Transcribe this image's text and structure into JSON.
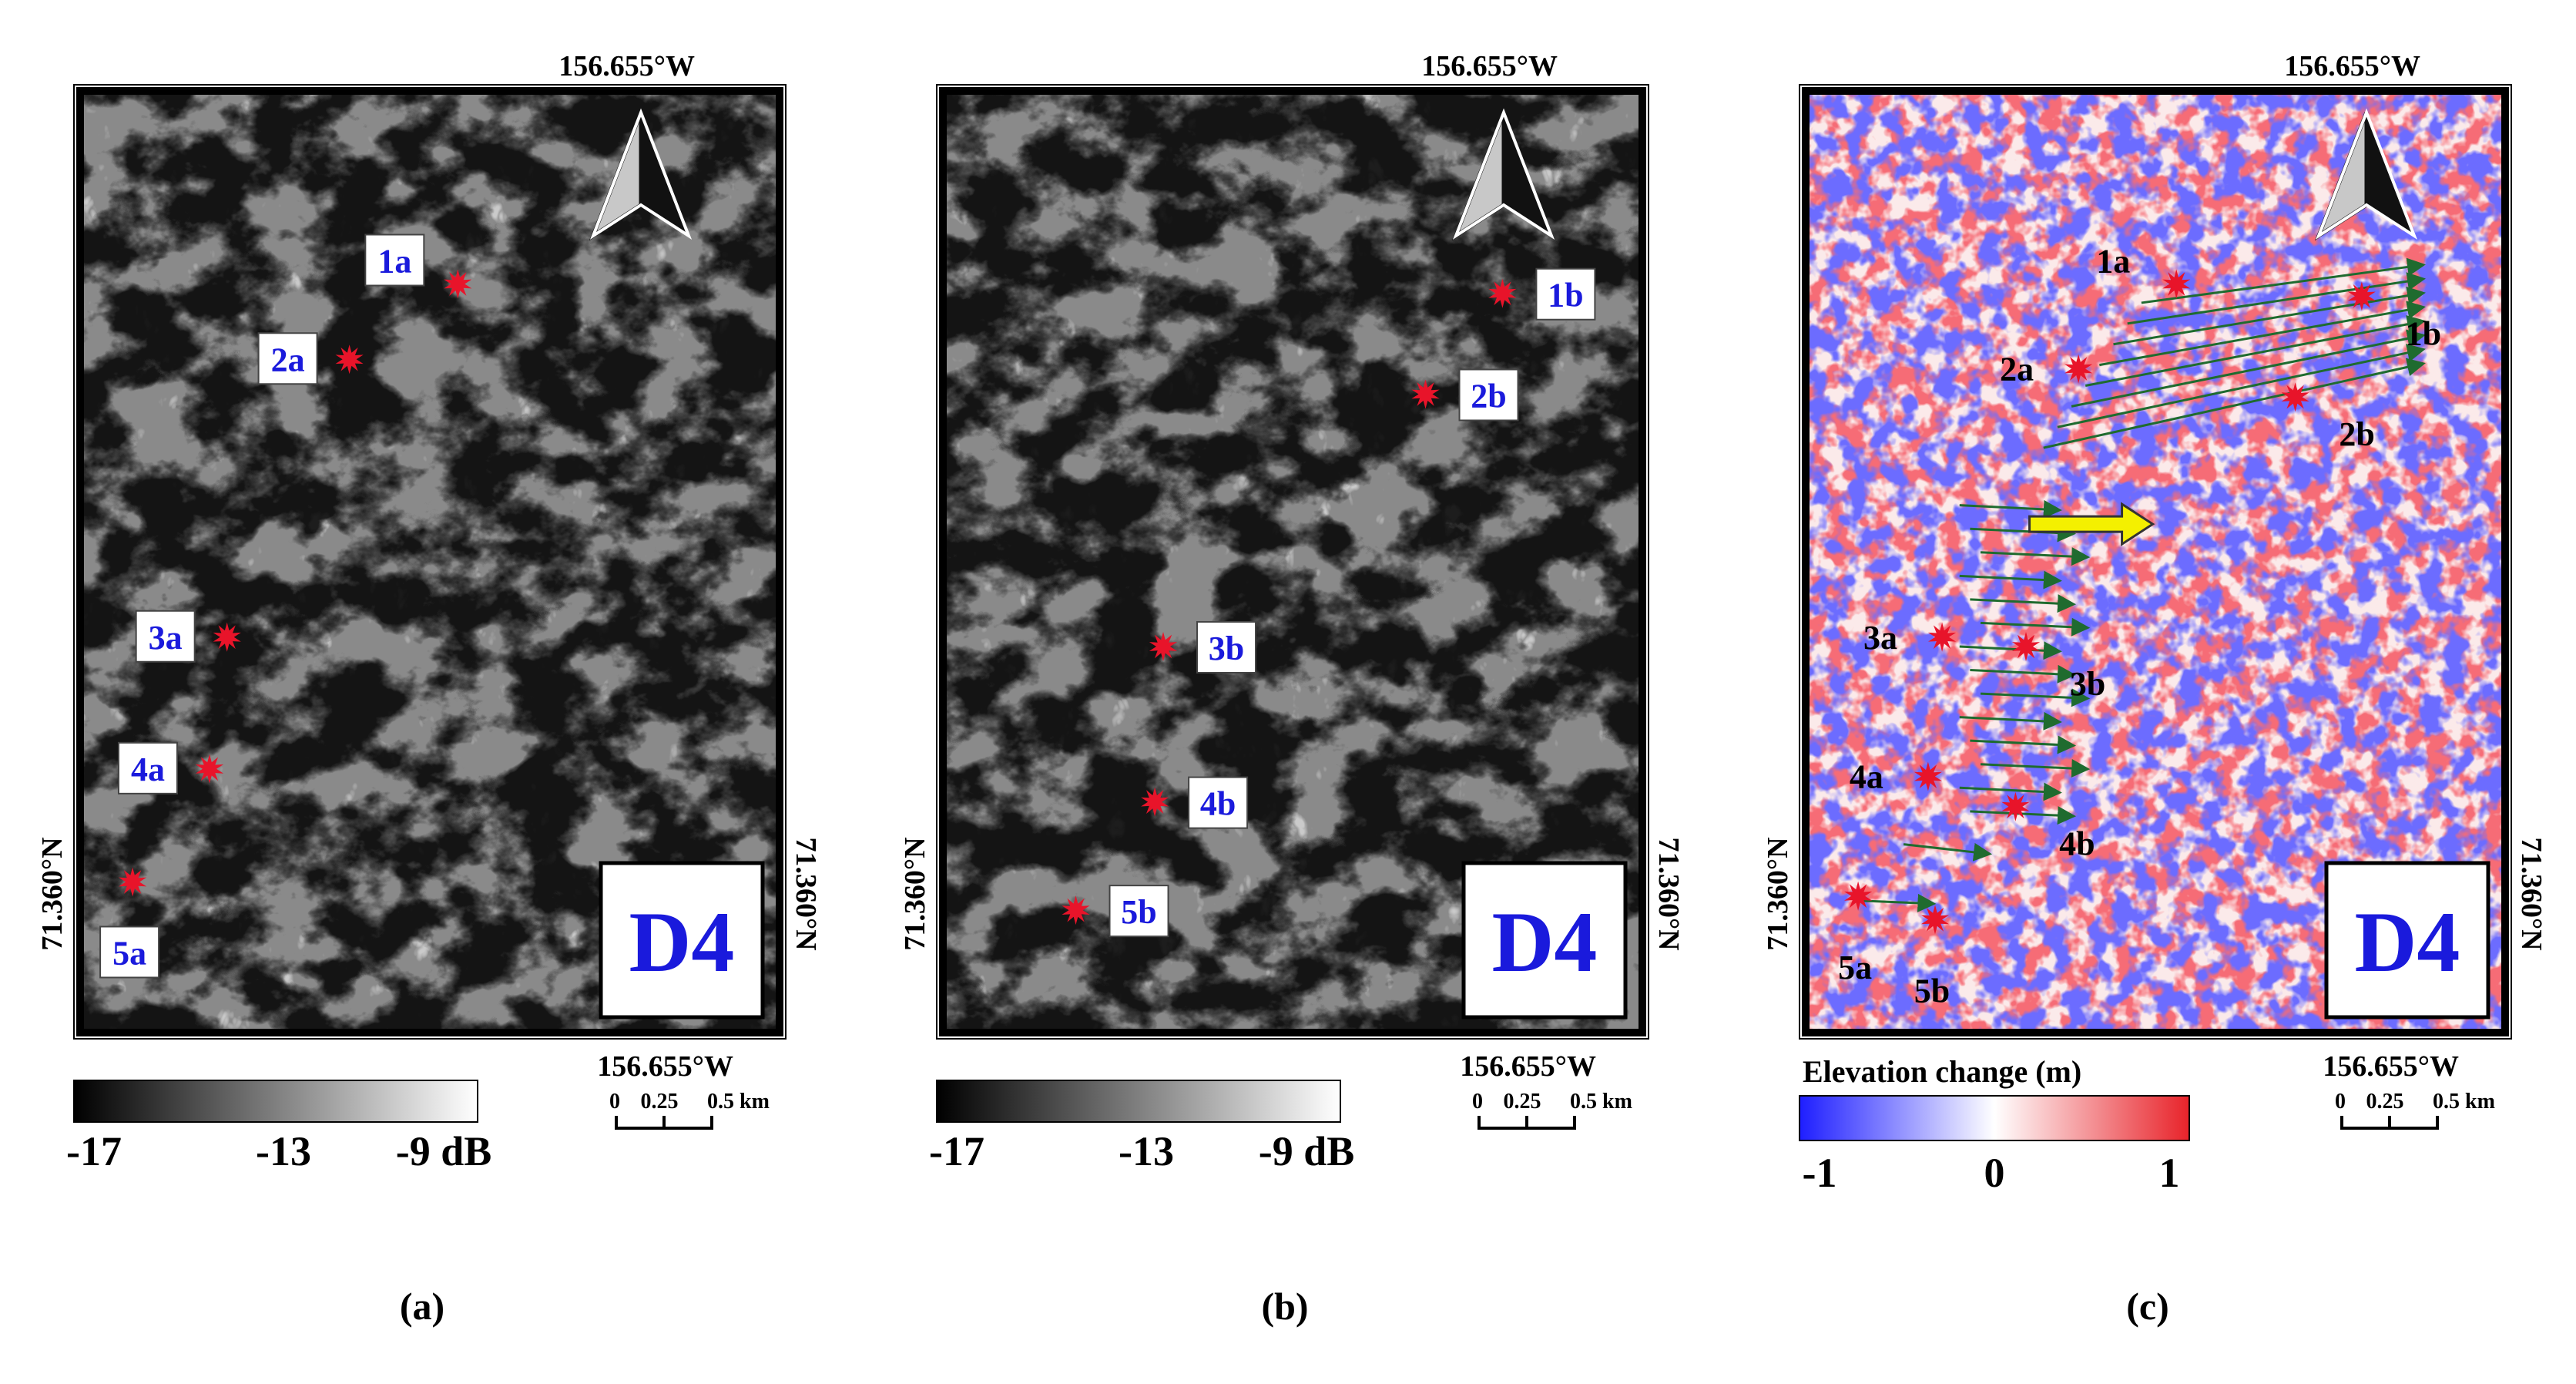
{
  "panels": [
    {
      "id": "a",
      "kind": "sar",
      "caption": "(a)",
      "top_label": "156.655°W",
      "bottom_label": "156.655°W",
      "left_label": "71.360°N",
      "right_label": "71.360°N",
      "badge": "D4",
      "colorbar": {
        "ticks": [
          "-17",
          "-13",
          "-9 dB"
        ],
        "colors": [
          "#000000",
          "#ffffff"
        ]
      },
      "scale": {
        "ticks": [
          "0",
          "0.25",
          "0.5 km"
        ]
      },
      "points": [
        {
          "label": "1a",
          "fx": 0.54,
          "fy": 0.205,
          "label_side": "upleft"
        },
        {
          "label": "2a",
          "fx": 0.385,
          "fy": 0.285,
          "label_side": "left"
        },
        {
          "label": "3a",
          "fx": 0.21,
          "fy": 0.58,
          "label_side": "left"
        },
        {
          "label": "4a",
          "fx": 0.185,
          "fy": 0.72,
          "label_side": "left"
        },
        {
          "label": "5a",
          "fx": 0.075,
          "fy": 0.84,
          "label_side": "below"
        }
      ]
    },
    {
      "id": "b",
      "kind": "sar",
      "caption": "(b)",
      "top_label": "156.655°W",
      "bottom_label": "156.655°W",
      "left_label": "71.360°N",
      "right_label": "71.360°N",
      "badge": "D4",
      "colorbar": {
        "ticks": [
          "-17",
          "-13",
          "-9 dB"
        ],
        "colors": [
          "#000000",
          "#ffffff"
        ]
      },
      "scale": {
        "ticks": [
          "0",
          "0.25",
          "0.5 km"
        ]
      },
      "points": [
        {
          "label": "1b",
          "fx": 0.8,
          "fy": 0.215,
          "label_side": "right"
        },
        {
          "label": "2b",
          "fx": 0.69,
          "fy": 0.322,
          "label_side": "right"
        },
        {
          "label": "3b",
          "fx": 0.315,
          "fy": 0.59,
          "label_side": "right"
        },
        {
          "label": "4b",
          "fx": 0.303,
          "fy": 0.755,
          "label_side": "right"
        },
        {
          "label": "5b",
          "fx": 0.19,
          "fy": 0.87,
          "label_side": "right"
        }
      ]
    },
    {
      "id": "c",
      "kind": "elevation",
      "caption": "(c)",
      "top_label": "156.655°W",
      "bottom_label": "156.655°W",
      "left_label": "71.360°N",
      "right_label": "71.360°N",
      "badge": "D4",
      "colorbar_title": "Elevation change (m)",
      "colorbar": {
        "ticks": [
          "-1",
          "0",
          "1"
        ],
        "colors": [
          "#1e1eff",
          "#ffffff",
          "#e8232a"
        ]
      },
      "scale": {
        "ticks": [
          "0",
          "0.25",
          "0.5 km"
        ]
      },
      "points": [
        {
          "label": "1a",
          "fx": 0.53,
          "fy": 0.205,
          "label_side": "upleft"
        },
        {
          "label": "1b",
          "fx": 0.795,
          "fy": 0.218,
          "label_side": "downright"
        },
        {
          "label": "2a",
          "fx": 0.39,
          "fy": 0.295,
          "label_side": "left"
        },
        {
          "label": "2b",
          "fx": 0.7,
          "fy": 0.325,
          "label_side": "downright"
        },
        {
          "label": "3a",
          "fx": 0.195,
          "fy": 0.58,
          "label_side": "left"
        },
        {
          "label": "3b",
          "fx": 0.315,
          "fy": 0.59,
          "label_side": "downright"
        },
        {
          "label": "4a",
          "fx": 0.175,
          "fy": 0.728,
          "label_side": "left"
        },
        {
          "label": "4b",
          "fx": 0.3,
          "fy": 0.76,
          "label_side": "downright"
        },
        {
          "label": "5a",
          "fx": 0.075,
          "fy": 0.855,
          "label_side": "below"
        },
        {
          "label": "5b",
          "fx": 0.185,
          "fy": 0.88,
          "label_side": "below"
        }
      ]
    }
  ],
  "colors": {
    "marker": "#e8142a",
    "label_text": "#1a1adc",
    "arrow": "#1f6b2f",
    "motion_arrow": "#f4f000",
    "frame": "#000000"
  },
  "icons": [
    "north-arrow-icon",
    "star-marker-icon",
    "displacement-arrow-icon",
    "motion-direction-icon"
  ]
}
